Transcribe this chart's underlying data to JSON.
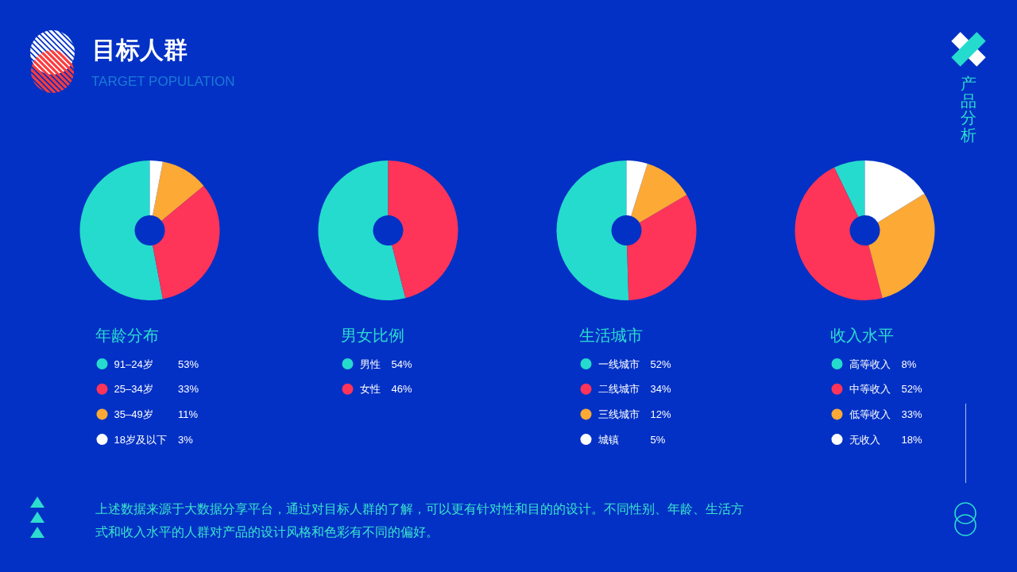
{
  "chart_data": [
    {
      "type": "other",
      "title": "目标人群",
      "subtitle": "TARGET POPULATION",
      "annotations": [
        "产品分析"
      ]
    },
    {
      "type": "donut",
      "title": "年龄分布",
      "categories": [
        "91–24岁",
        "25–34岁",
        "35–49岁",
        "18岁及以下"
      ],
      "values": [
        53,
        33,
        11,
        3
      ],
      "value_labels": [
        "53%",
        "33%",
        "11%",
        "3%"
      ],
      "colors": [
        "#25dbcd",
        "#fe3459",
        "#fda935",
        "#ffffff"
      ],
      "legend": "bottom"
    },
    {
      "type": "donut",
      "title": "男女比例",
      "categories": [
        "男性",
        "女性"
      ],
      "values": [
        54,
        46
      ],
      "value_labels": [
        "54%",
        "46%"
      ],
      "colors": [
        "#25dbcd",
        "#fe3459"
      ],
      "legend": "bottom"
    },
    {
      "type": "donut",
      "title": "生活城市",
      "categories": [
        "一线城市",
        "二线城市",
        "三线城市",
        "城镇"
      ],
      "values": [
        52,
        34,
        12,
        5
      ],
      "value_labels": [
        "52%",
        "34%",
        "12%",
        "5%"
      ],
      "colors": [
        "#25dbcd",
        "#fe3459",
        "#fda935",
        "#ffffff"
      ],
      "legend": "bottom"
    },
    {
      "type": "donut",
      "title": "收入水平",
      "categories": [
        "高等收入",
        "中等收入",
        "低等收入",
        "无收入"
      ],
      "values": [
        8,
        52,
        33,
        18
      ],
      "value_labels": [
        "8%",
        "52%",
        "33%",
        "18%"
      ],
      "colors": [
        "#25dbcd",
        "#fe3459",
        "#fda935",
        "#ffffff"
      ],
      "legend": "bottom"
    },
    {
      "type": "other",
      "annotations": [
        "上述数据来源于大数据分享平台，通过对目标人群的了解，可以更有针对性和目的的设计。不同性别、年龄、生活方式和收入水平的人群对产品的设计风格和色彩有不同的偏好。"
      ]
    }
  ]
}
